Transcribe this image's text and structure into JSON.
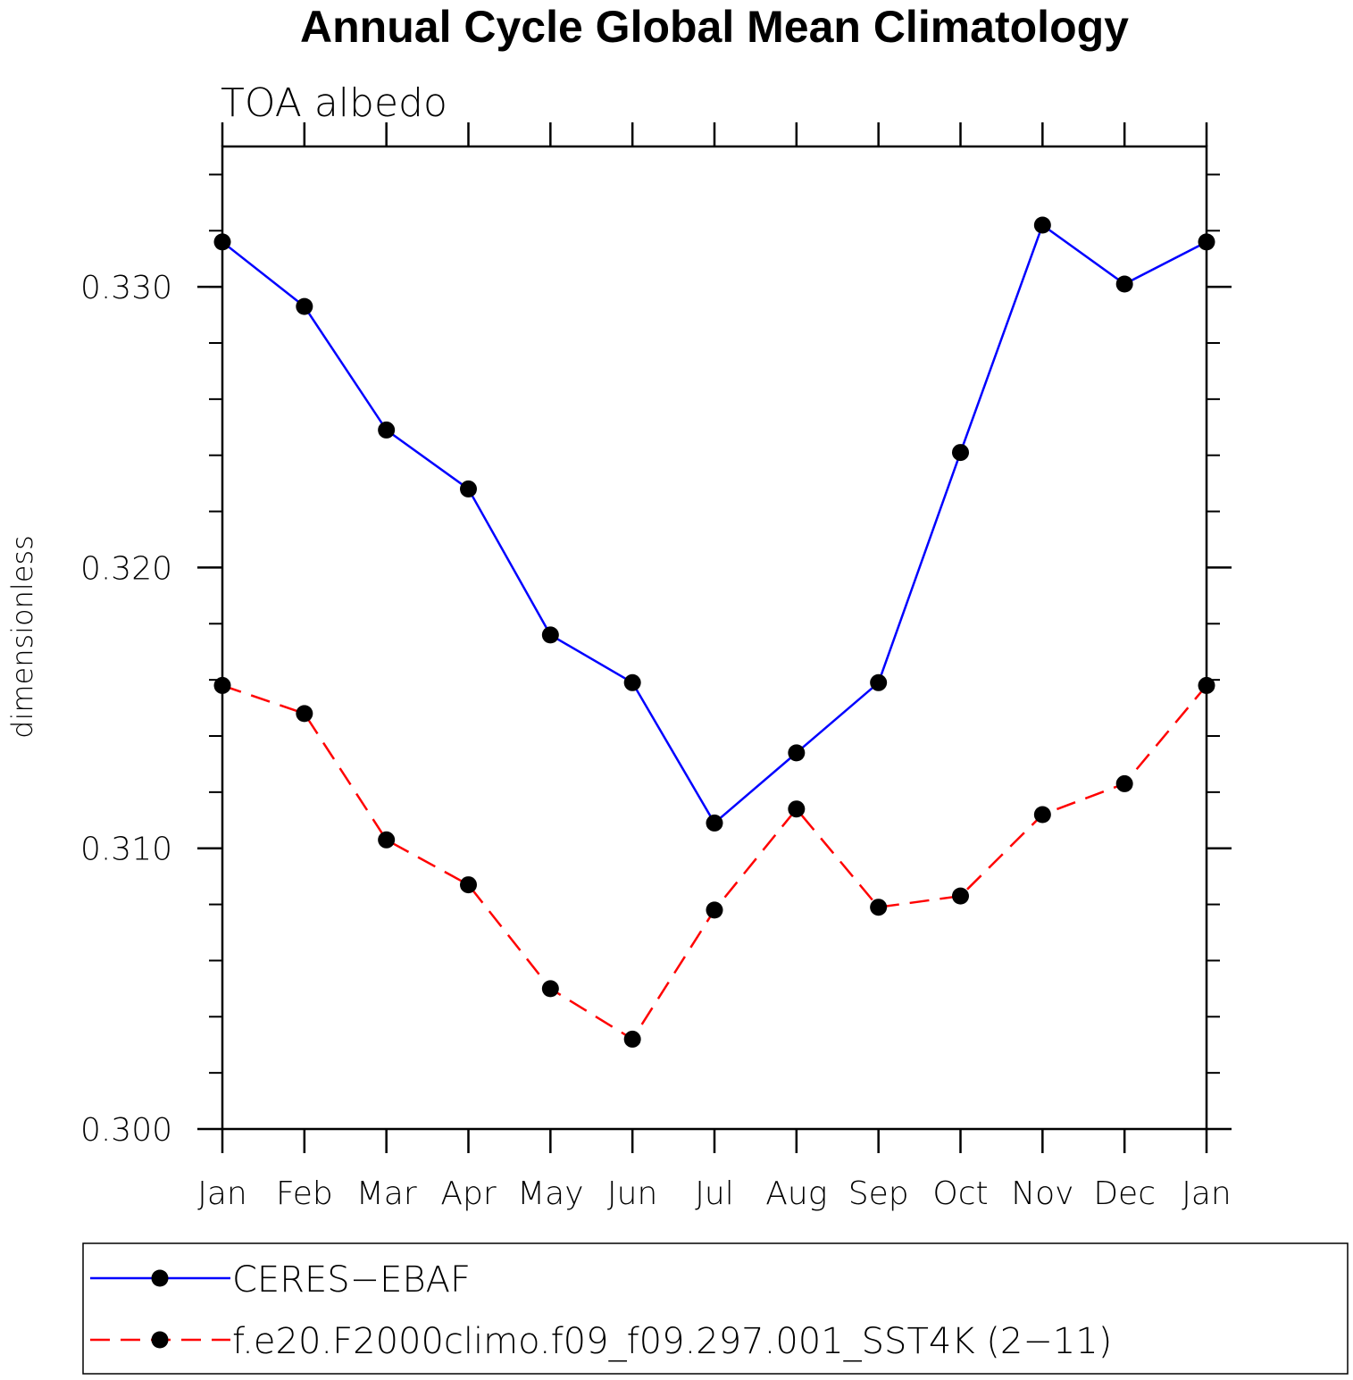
{
  "chart_data": {
    "type": "line",
    "title": "Annual Cycle Global Mean Climatology",
    "subtitle": "TOA albedo",
    "xlabel": "",
    "ylabel": "dimensionless",
    "categories": [
      "Jan",
      "Feb",
      "Mar",
      "Apr",
      "May",
      "Jun",
      "Jul",
      "Aug",
      "Sep",
      "Oct",
      "Nov",
      "Dec",
      "Jan"
    ],
    "ylim": [
      0.3,
      0.335
    ],
    "yticks": [
      0.3,
      0.31,
      0.32,
      0.33
    ],
    "ytick_labels": [
      "0.300",
      "0.310",
      "0.320",
      "0.330"
    ],
    "y_minor_step": 0.002,
    "grid": false,
    "legend_position": "bottom",
    "series": [
      {
        "name": "CERES-EBAF",
        "color": "#0000ff",
        "line_style": "solid",
        "marker": "filled-circle",
        "values": [
          0.3316,
          0.3293,
          0.3249,
          0.3228,
          0.3176,
          0.3159,
          0.3109,
          0.3134,
          0.3159,
          0.3241,
          0.3322,
          0.3301,
          0.3316
        ]
      },
      {
        "name": "f.e20.F2000climo.f09_f09.297.001_SST4K (2-11)",
        "color": "#ff0000",
        "line_style": "dashed",
        "marker": "filled-circle",
        "values": [
          0.3158,
          0.3148,
          0.3103,
          0.3087,
          0.305,
          0.3032,
          0.3078,
          0.3114,
          0.3079,
          0.3083,
          0.3112,
          0.3123,
          0.3158
        ]
      }
    ]
  },
  "legend_labels": [
    "CERES−EBAF",
    "f.e20.F2000climo.f09_f09.297.001_SST4K (2−11)"
  ]
}
